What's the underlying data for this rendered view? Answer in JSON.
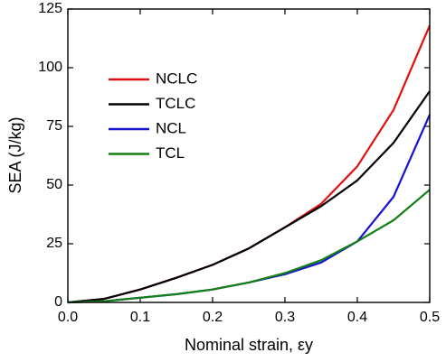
{
  "chart_data": {
    "type": "line",
    "x_label": "Nominal strain, εy",
    "y_label": "SEA (J/kg)",
    "x": [
      0,
      0.05,
      0.1,
      0.15,
      0.2,
      0.25,
      0.3,
      0.35,
      0.4,
      0.45,
      0.5
    ],
    "series": [
      {
        "name": "NCLC",
        "color": "#e01010",
        "values": [
          0,
          1.5,
          5.5,
          10.5,
          16,
          23,
          32,
          42,
          58,
          82,
          118
        ]
      },
      {
        "name": "TCLC",
        "color": "#000000",
        "values": [
          0,
          1.5,
          5.5,
          10.5,
          16,
          23,
          32,
          41,
          52,
          68,
          90
        ]
      },
      {
        "name": "NCL",
        "color": "#1515d0",
        "values": [
          0,
          0.5,
          2,
          3.5,
          5.5,
          8.5,
          12,
          17,
          26,
          45,
          80
        ]
      },
      {
        "name": "TCL",
        "color": "#138013",
        "values": [
          0,
          0.5,
          2,
          3.5,
          5.5,
          8.5,
          12.5,
          18,
          26,
          35,
          48
        ]
      }
    ],
    "xlim": [
      0,
      0.5
    ],
    "ylim": [
      0,
      125
    ],
    "xticks": [
      {
        "value": 0,
        "label": "0.0"
      },
      0.1,
      0.2,
      0.3,
      0.4,
      0.5
    ],
    "yticks": [
      0,
      25,
      50,
      75,
      100,
      125
    ],
    "legend": "upper left"
  }
}
